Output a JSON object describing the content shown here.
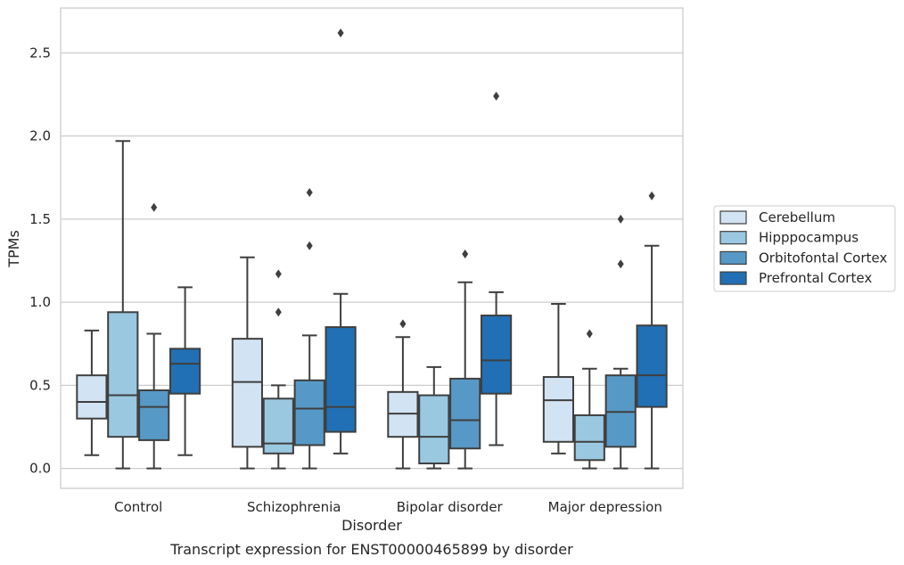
{
  "chart_data": {
    "type": "box",
    "title": "Transcript expression for ENST00000465899 by disorder",
    "xlabel": "Disorder",
    "ylabel": "TPMs",
    "ylim": [
      -0.12,
      2.77
    ],
    "yticks": [
      "0.0",
      "0.5",
      "1.0",
      "1.5",
      "2.0",
      "2.5"
    ],
    "ytick_values": [
      0,
      0.5,
      1.0,
      1.5,
      2.0,
      2.5
    ],
    "grid": "horizontal",
    "legend_position": "right",
    "categories": [
      "Control",
      "Schizophrenia",
      "Bipolar disorder",
      "Major depression"
    ],
    "series": [
      {
        "name": "Cerebellum",
        "color": "#d2e3f3",
        "boxes": [
          {
            "whislo": 0.08,
            "q1": 0.3,
            "med": 0.4,
            "q3": 0.56,
            "whishi": 0.83,
            "fliers": []
          },
          {
            "whislo": 0.0,
            "q1": 0.13,
            "med": 0.52,
            "q3": 0.78,
            "whishi": 1.27,
            "fliers": []
          },
          {
            "whislo": 0.0,
            "q1": 0.19,
            "med": 0.33,
            "q3": 0.46,
            "whishi": 0.79,
            "fliers": [
              0.87
            ]
          },
          {
            "whislo": 0.09,
            "q1": 0.16,
            "med": 0.41,
            "q3": 0.55,
            "whishi": 0.99,
            "fliers": []
          }
        ]
      },
      {
        "name": "Hipppocampus",
        "color": "#9ac8e0",
        "boxes": [
          {
            "whislo": 0.0,
            "q1": 0.19,
            "med": 0.44,
            "q3": 0.94,
            "whishi": 1.97,
            "fliers": []
          },
          {
            "whislo": 0.0,
            "q1": 0.09,
            "med": 0.15,
            "q3": 0.42,
            "whishi": 0.5,
            "fliers": [
              0.94,
              1.17
            ]
          },
          {
            "whislo": 0.0,
            "q1": 0.03,
            "med": 0.19,
            "q3": 0.44,
            "whishi": 0.61,
            "fliers": []
          },
          {
            "whislo": 0.0,
            "q1": 0.05,
            "med": 0.16,
            "q3": 0.32,
            "whishi": 0.6,
            "fliers": [
              0.81
            ]
          }
        ]
      },
      {
        "name": "Orbitofontal Cortex",
        "color": "#5799c6",
        "boxes": [
          {
            "whislo": 0.0,
            "q1": 0.17,
            "med": 0.37,
            "q3": 0.47,
            "whishi": 0.81,
            "fliers": [
              1.57
            ]
          },
          {
            "whislo": 0.0,
            "q1": 0.14,
            "med": 0.36,
            "q3": 0.53,
            "whishi": 0.8,
            "fliers": [
              1.34,
              1.66
            ]
          },
          {
            "whislo": 0.0,
            "q1": 0.12,
            "med": 0.29,
            "q3": 0.54,
            "whishi": 1.12,
            "fliers": [
              1.29
            ]
          },
          {
            "whislo": 0.0,
            "q1": 0.13,
            "med": 0.34,
            "q3": 0.56,
            "whishi": 0.6,
            "fliers": [
              1.23,
              1.5
            ]
          }
        ]
      },
      {
        "name": "Prefrontal Cortex",
        "color": "#2170b5",
        "boxes": [
          {
            "whislo": 0.08,
            "q1": 0.45,
            "med": 0.63,
            "q3": 0.72,
            "whishi": 1.09,
            "fliers": []
          },
          {
            "whislo": 0.09,
            "q1": 0.22,
            "med": 0.37,
            "q3": 0.85,
            "whishi": 1.05,
            "fliers": [
              2.62
            ]
          },
          {
            "whislo": 0.14,
            "q1": 0.45,
            "med": 0.65,
            "q3": 0.92,
            "whishi": 1.06,
            "fliers": [
              2.24
            ]
          },
          {
            "whislo": 0.0,
            "q1": 0.37,
            "med": 0.56,
            "q3": 0.86,
            "whishi": 1.34,
            "fliers": [
              1.64
            ]
          }
        ]
      }
    ]
  }
}
